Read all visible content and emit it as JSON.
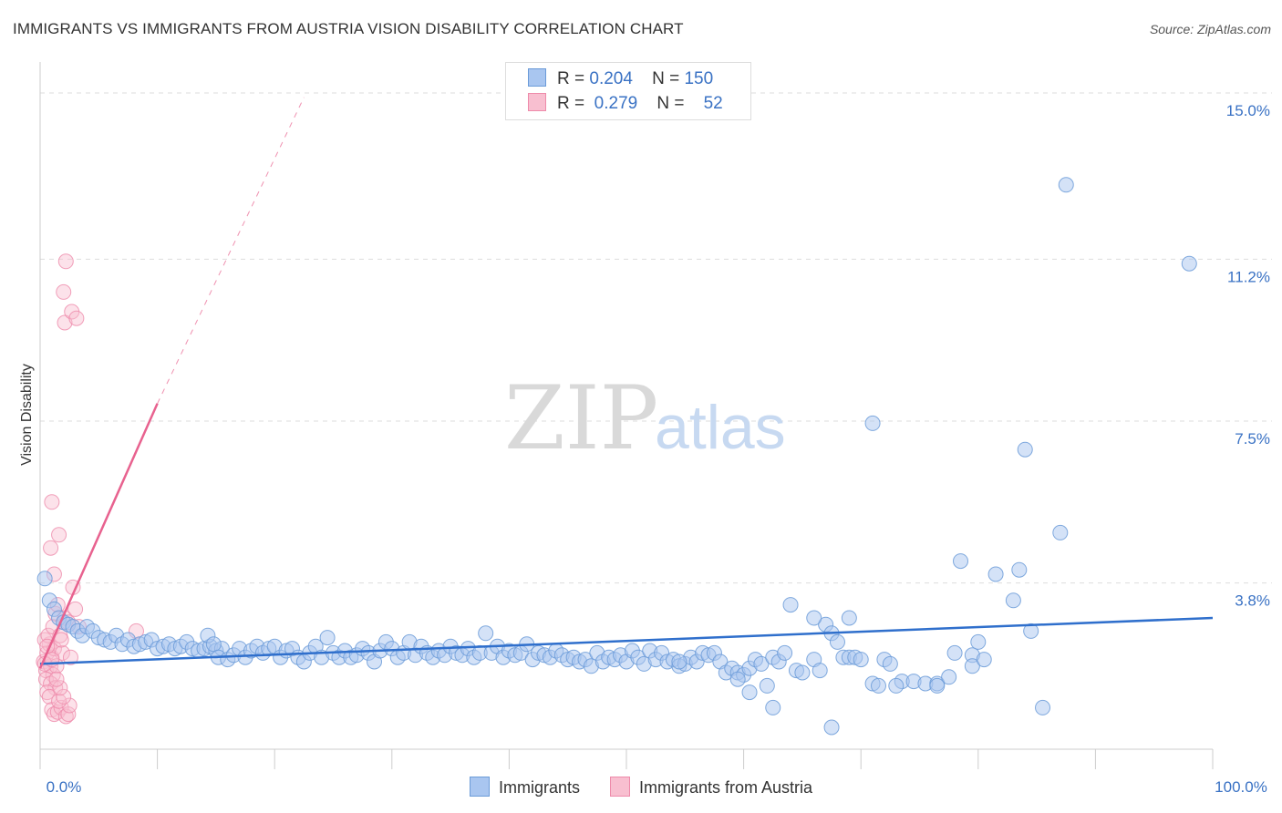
{
  "title": "IMMIGRANTS VS IMMIGRANTS FROM AUSTRIA VISION DISABILITY CORRELATION CHART",
  "source": "Source: ZipAtlas.com",
  "watermark": {
    "zip": "ZIP",
    "atlas": "atlas"
  },
  "legend": {
    "rows": [
      {
        "r_label": "R =",
        "r_value": "0.204",
        "n_label": "N =",
        "n_value": "150"
      },
      {
        "r_label": "R =",
        "r_value": "0.279",
        "n_label": "N =",
        "n_value": "52"
      }
    ]
  },
  "colors": {
    "immigrants_fill": "#a9c6f0",
    "immigrants_stroke": "#6b9bd8",
    "immigrants_line": "#2f6fcc",
    "austria_fill": "#f8bfd0",
    "austria_stroke": "#ee8aaa",
    "austria_line": "#e8628f",
    "grid": "#dddddd",
    "axis_text": "#3a72c4"
  },
  "chart_data": {
    "type": "scatter",
    "title": "IMMIGRANTS VS IMMIGRANTS FROM AUSTRIA VISION DISABILITY CORRELATION CHART",
    "xlabel": "",
    "ylabel": "Vision Disability",
    "xlim": [
      0,
      100
    ],
    "ylim": [
      0,
      15.5
    ],
    "x_tick_labels": [
      "0.0%",
      "100.0%"
    ],
    "y_ticks": [
      3.8,
      7.5,
      11.2,
      15.0
    ],
    "y_tick_labels": [
      "3.8%",
      "7.5%",
      "11.2%",
      "15.0%"
    ],
    "series": [
      {
        "name": "Immigrants",
        "R": 0.204,
        "N": 150,
        "trend": {
          "x": [
            0,
            100
          ],
          "y": [
            1.95,
            3.0
          ],
          "style": "solid"
        },
        "points": [
          [
            0.4,
            3.9
          ],
          [
            0.8,
            3.4
          ],
          [
            1.2,
            3.2
          ],
          [
            1.6,
            3.0
          ],
          [
            2.0,
            2.9
          ],
          [
            2.4,
            2.85
          ],
          [
            2.8,
            2.8
          ],
          [
            3.2,
            2.7
          ],
          [
            3.6,
            2.6
          ],
          [
            4.0,
            2.8
          ],
          [
            4.5,
            2.7
          ],
          [
            5.0,
            2.55
          ],
          [
            5.5,
            2.5
          ],
          [
            6.0,
            2.45
          ],
          [
            6.5,
            2.6
          ],
          [
            7.0,
            2.4
          ],
          [
            7.5,
            2.5
          ],
          [
            8.0,
            2.35
          ],
          [
            8.5,
            2.4
          ],
          [
            9.0,
            2.45
          ],
          [
            9.5,
            2.5
          ],
          [
            10.0,
            2.3
          ],
          [
            10.5,
            2.35
          ],
          [
            11.0,
            2.4
          ],
          [
            11.5,
            2.3
          ],
          [
            12.0,
            2.35
          ],
          [
            12.5,
            2.45
          ],
          [
            13.0,
            2.3
          ],
          [
            13.5,
            2.25
          ],
          [
            14.0,
            2.3
          ],
          [
            14.5,
            2.35
          ],
          [
            15.0,
            2.25
          ],
          [
            15.5,
            2.3
          ],
          [
            14.3,
            2.6
          ],
          [
            14.8,
            2.4
          ],
          [
            15.2,
            2.1
          ],
          [
            16.0,
            2.05
          ],
          [
            16.5,
            2.15
          ],
          [
            17.0,
            2.3
          ],
          [
            17.5,
            2.1
          ],
          [
            18.0,
            2.25
          ],
          [
            18.5,
            2.35
          ],
          [
            19.0,
            2.2
          ],
          [
            19.5,
            2.3
          ],
          [
            20.0,
            2.35
          ],
          [
            20.5,
            2.1
          ],
          [
            21.0,
            2.25
          ],
          [
            21.5,
            2.3
          ],
          [
            22.0,
            2.1
          ],
          [
            22.5,
            2.0
          ],
          [
            23.0,
            2.2
          ],
          [
            23.5,
            2.35
          ],
          [
            24.0,
            2.1
          ],
          [
            24.5,
            2.55
          ],
          [
            25.0,
            2.2
          ],
          [
            25.5,
            2.1
          ],
          [
            26.0,
            2.25
          ],
          [
            26.5,
            2.1
          ],
          [
            27.0,
            2.15
          ],
          [
            27.5,
            2.3
          ],
          [
            28.0,
            2.2
          ],
          [
            28.5,
            2.0
          ],
          [
            29.0,
            2.25
          ],
          [
            29.5,
            2.45
          ],
          [
            30.0,
            2.3
          ],
          [
            30.5,
            2.1
          ],
          [
            31.0,
            2.2
          ],
          [
            31.5,
            2.45
          ],
          [
            32.0,
            2.15
          ],
          [
            32.5,
            2.35
          ],
          [
            33.0,
            2.2
          ],
          [
            33.5,
            2.1
          ],
          [
            34.0,
            2.25
          ],
          [
            34.5,
            2.15
          ],
          [
            35.0,
            2.35
          ],
          [
            35.5,
            2.2
          ],
          [
            36.0,
            2.15
          ],
          [
            36.5,
            2.3
          ],
          [
            37.0,
            2.1
          ],
          [
            37.5,
            2.2
          ],
          [
            38.0,
            2.65
          ],
          [
            38.5,
            2.2
          ],
          [
            39.0,
            2.35
          ],
          [
            39.5,
            2.1
          ],
          [
            40.0,
            2.25
          ],
          [
            40.5,
            2.15
          ],
          [
            41.0,
            2.2
          ],
          [
            41.5,
            2.4
          ],
          [
            42.0,
            2.05
          ],
          [
            42.5,
            2.2
          ],
          [
            43.0,
            2.15
          ],
          [
            43.5,
            2.1
          ],
          [
            44.0,
            2.25
          ],
          [
            44.5,
            2.15
          ],
          [
            45.0,
            2.05
          ],
          [
            45.5,
            2.1
          ],
          [
            46.0,
            2.0
          ],
          [
            46.5,
            2.05
          ],
          [
            47.0,
            1.9
          ],
          [
            47.5,
            2.2
          ],
          [
            48.0,
            2.0
          ],
          [
            48.5,
            2.1
          ],
          [
            49.0,
            2.05
          ],
          [
            49.5,
            2.15
          ],
          [
            50.0,
            2.0
          ],
          [
            50.5,
            2.25
          ],
          [
            51.0,
            2.1
          ],
          [
            51.5,
            1.95
          ],
          [
            52.0,
            2.25
          ],
          [
            52.5,
            2.05
          ],
          [
            53.0,
            2.2
          ],
          [
            53.5,
            2.0
          ],
          [
            54.0,
            2.05
          ],
          [
            54.5,
            1.9
          ],
          [
            55.0,
            1.95
          ],
          [
            55.5,
            2.1
          ],
          [
            56.0,
            2.0
          ],
          [
            56.5,
            2.2
          ],
          [
            57.0,
            2.15
          ],
          [
            57.5,
            2.2
          ],
          [
            58.0,
            2.0
          ],
          [
            58.5,
            1.75
          ],
          [
            59.0,
            1.85
          ],
          [
            59.5,
            1.75
          ],
          [
            60.0,
            1.7
          ],
          [
            60.5,
            1.85
          ],
          [
            61.0,
            2.05
          ],
          [
            61.5,
            1.95
          ],
          [
            62.0,
            1.45
          ],
          [
            62.5,
            2.1
          ],
          [
            63.0,
            2.0
          ],
          [
            63.5,
            2.2
          ],
          [
            64.5,
            1.8
          ],
          [
            65.0,
            1.75
          ],
          [
            66.0,
            2.05
          ],
          [
            66.5,
            1.8
          ],
          [
            67.0,
            2.85
          ],
          [
            67.5,
            2.65
          ],
          [
            68.0,
            2.45
          ],
          [
            68.5,
            2.1
          ],
          [
            69.0,
            2.1
          ],
          [
            69.5,
            2.1
          ],
          [
            70.0,
            2.05
          ],
          [
            71.0,
            1.5
          ],
          [
            71.5,
            1.45
          ],
          [
            72.0,
            2.05
          ],
          [
            72.5,
            1.95
          ],
          [
            73.5,
            1.55
          ],
          [
            74.5,
            1.55
          ],
          [
            75.5,
            1.5
          ],
          [
            76.5,
            1.5
          ],
          [
            77.5,
            1.65
          ],
          [
            78.0,
            2.2
          ],
          [
            79.5,
            2.15
          ],
          [
            80.0,
            2.45
          ],
          [
            84.5,
            2.7
          ],
          [
            67.5,
            0.5
          ],
          [
            62.5,
            0.95
          ],
          [
            85.5,
            0.95
          ],
          [
            60.5,
            1.3
          ],
          [
            73.0,
            1.45
          ],
          [
            79.5,
            1.9
          ],
          [
            80.5,
            2.05
          ],
          [
            76.5,
            1.45
          ],
          [
            59.5,
            1.6
          ],
          [
            54.5,
            2.0
          ],
          [
            64.0,
            3.3
          ],
          [
            66.0,
            3.0
          ],
          [
            69.0,
            3.0
          ],
          [
            81.5,
            4.0
          ],
          [
            83.5,
            4.1
          ],
          [
            83.0,
            3.4
          ],
          [
            78.5,
            4.3
          ],
          [
            71.0,
            7.45
          ],
          [
            84.0,
            6.85
          ],
          [
            87.0,
            4.95
          ],
          [
            87.5,
            12.9
          ],
          [
            98.0,
            11.1
          ]
        ]
      },
      {
        "name": "Immigrants from Austria",
        "R": 0.279,
        "N": 52,
        "trend": {
          "x": [
            0,
            10
          ],
          "y": [
            1.85,
            7.9
          ],
          "style": "solid",
          "extension": {
            "x": [
              10,
              22.5
            ],
            "y": [
              7.9,
              14.9
            ],
            "style": "dashed"
          }
        },
        "points": [
          [
            0.3,
            2.0
          ],
          [
            0.5,
            1.8
          ],
          [
            0.6,
            2.2
          ],
          [
            0.8,
            2.4
          ],
          [
            0.9,
            1.9
          ],
          [
            1.0,
            2.1
          ],
          [
            1.1,
            1.7
          ],
          [
            1.2,
            2.3
          ],
          [
            0.4,
            2.5
          ],
          [
            0.7,
            2.6
          ],
          [
            0.5,
            1.6
          ],
          [
            0.9,
            1.5
          ],
          [
            1.3,
            1.4
          ],
          [
            1.4,
            1.9
          ],
          [
            0.6,
            1.3
          ],
          [
            0.8,
            1.2
          ],
          [
            1.0,
            0.9
          ],
          [
            1.2,
            0.8
          ],
          [
            1.5,
            0.85
          ],
          [
            1.8,
            0.95
          ],
          [
            2.2,
            0.75
          ],
          [
            2.4,
            0.8
          ],
          [
            2.5,
            1.0
          ],
          [
            1.6,
            1.1
          ],
          [
            2.0,
            1.2
          ],
          [
            1.7,
            1.4
          ],
          [
            1.1,
            2.8
          ],
          [
            1.3,
            3.1
          ],
          [
            1.5,
            3.3
          ],
          [
            1.7,
            2.6
          ],
          [
            1.9,
            2.2
          ],
          [
            2.1,
            3.0
          ],
          [
            2.4,
            2.9
          ],
          [
            2.8,
            3.7
          ],
          [
            3.0,
            3.2
          ],
          [
            1.2,
            4.0
          ],
          [
            1.6,
            4.9
          ],
          [
            0.9,
            4.6
          ],
          [
            1.0,
            5.65
          ],
          [
            2.1,
            9.75
          ],
          [
            2.7,
            10.0
          ],
          [
            3.1,
            9.85
          ],
          [
            2.0,
            10.45
          ],
          [
            2.2,
            11.15
          ],
          [
            0.6,
            2.35
          ],
          [
            1.4,
            1.6
          ],
          [
            2.6,
            2.1
          ],
          [
            0.4,
            1.95
          ],
          [
            1.8,
            2.5
          ],
          [
            3.3,
            2.8
          ],
          [
            8.2,
            2.7
          ],
          [
            1.0,
            2.05
          ]
        ]
      }
    ]
  }
}
